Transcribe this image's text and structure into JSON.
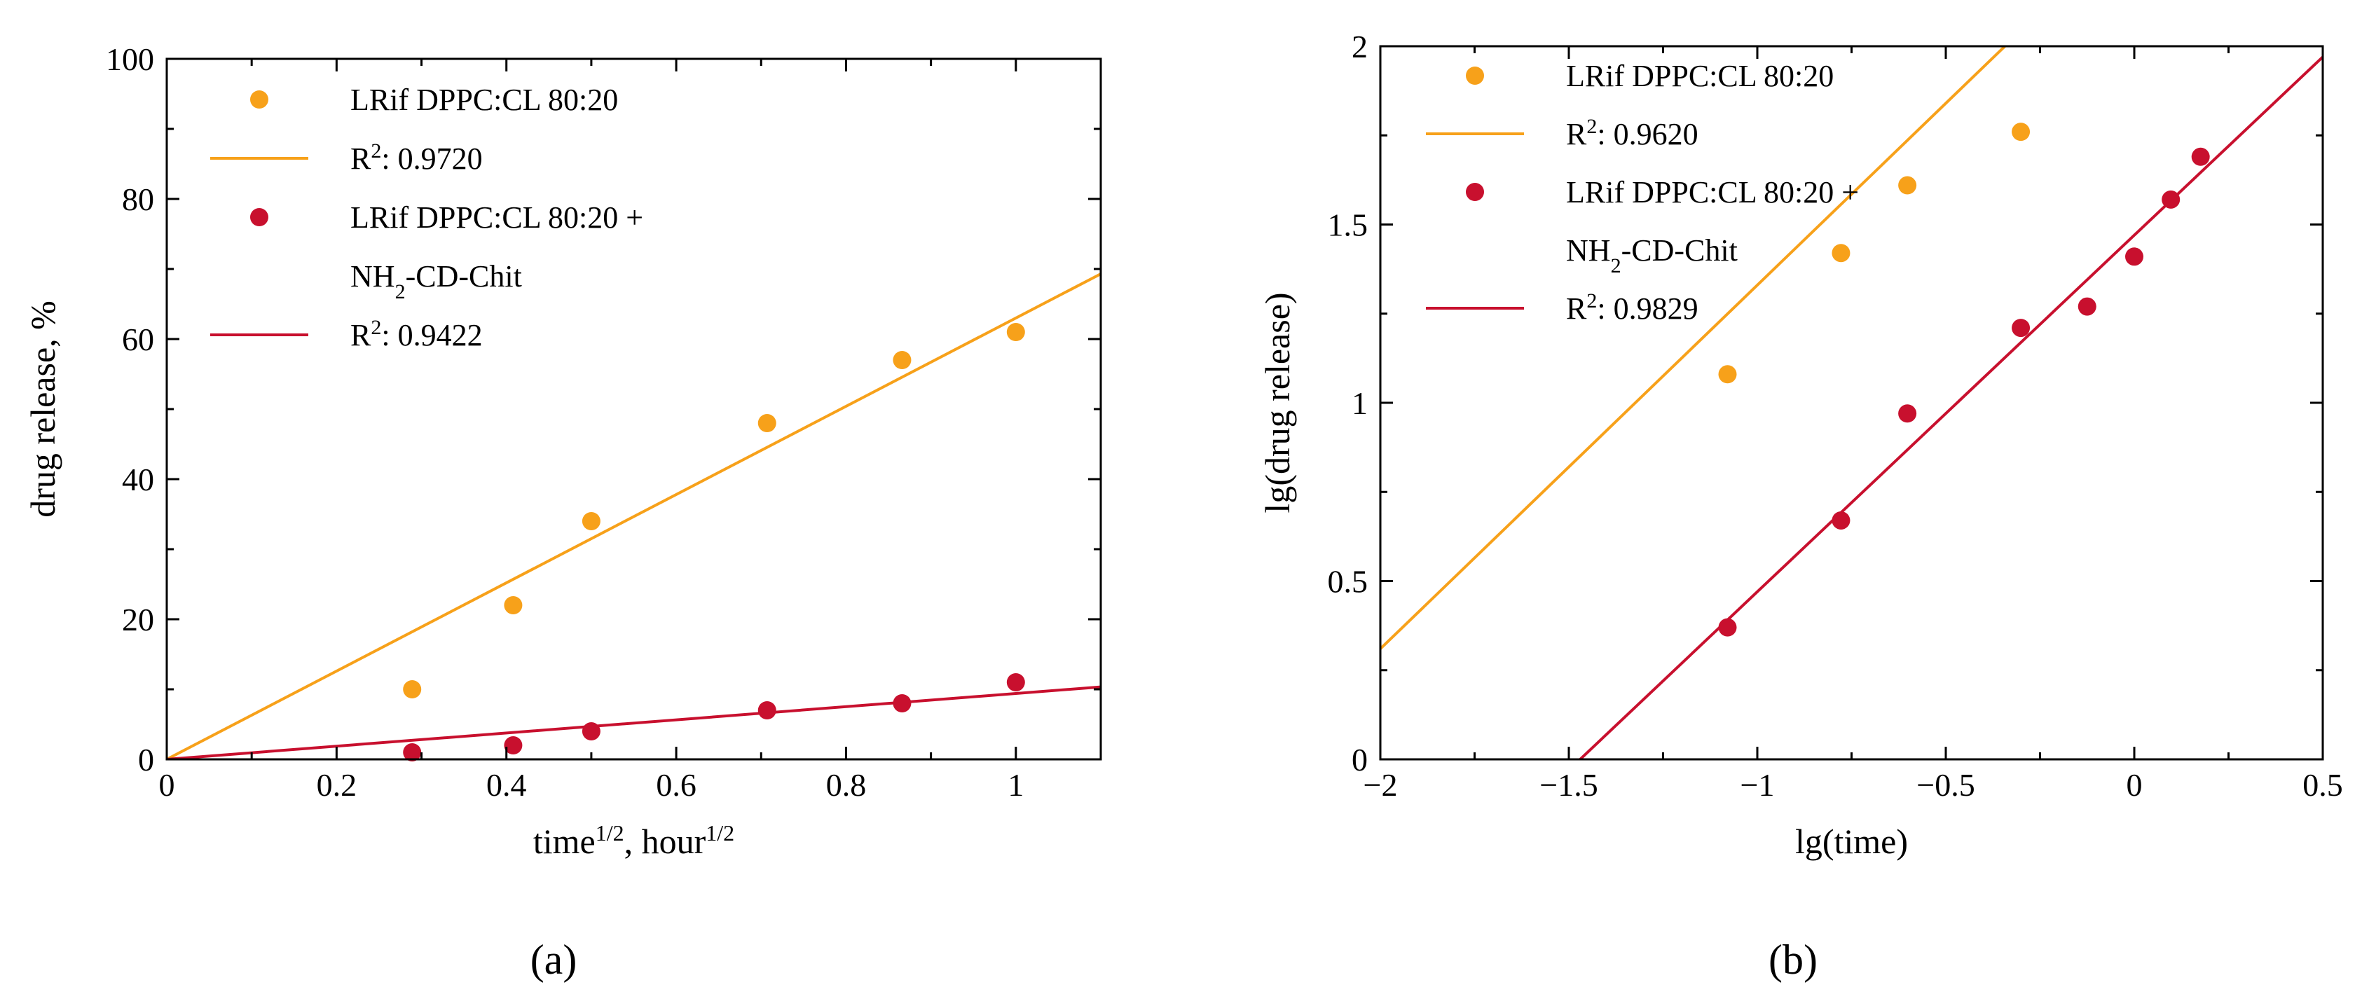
{
  "colors": {
    "series1": "#F7A11A",
    "series2": "#C8102E"
  },
  "chart_data": [
    {
      "id": "a",
      "type": "scatter",
      "panel_label": "(a)",
      "title": "",
      "xlabel": {
        "base": "time",
        "sup": "1/2",
        "mid": ", hour",
        "sup2": "1/2"
      },
      "ylabel": "drug release, %",
      "xlim": [
        0,
        1.1
      ],
      "ylim": [
        0,
        100
      ],
      "xticks": [
        0,
        0.2,
        0.4,
        0.6,
        0.8,
        1
      ],
      "xtick_labels": [
        "0",
        "0.2",
        "0.4",
        "0.6",
        "0.8",
        "1"
      ],
      "yticks": [
        0,
        20,
        40,
        60,
        80,
        100
      ],
      "ytick_labels": [
        "0",
        "20",
        "40",
        "60",
        "80",
        "100"
      ],
      "minor_xticks": [
        0.1,
        0.3,
        0.5,
        0.7,
        0.9
      ],
      "minor_yticks": [
        10,
        30,
        50,
        70,
        90
      ],
      "grid": false,
      "legend_position": "top-left",
      "series": [
        {
          "name": "LRif DPPC:CL 80:20",
          "color_key": "series1",
          "x": [
            0.289,
            0.408,
            0.5,
            0.707,
            0.866,
            1.0
          ],
          "y": [
            10,
            22,
            34,
            48,
            57,
            61
          ],
          "fit": {
            "label": {
              "pre": "R",
              "sup": "2",
              "post": ": 0.9720"
            },
            "slope": 63.0,
            "intercept": 0
          }
        },
        {
          "name": "LRif DPPC:CL 80:20 +",
          "name_line2": {
            "pre": "NH",
            "sub": "2",
            "post": "-CD-Chit"
          },
          "color_key": "series2",
          "x": [
            0.289,
            0.408,
            0.5,
            0.707,
            0.866,
            1.0
          ],
          "y": [
            1,
            2,
            4,
            7,
            8,
            11
          ],
          "fit": {
            "label": {
              "pre": "R",
              "sup": "2",
              "post": ": 0.9422"
            },
            "slope": 9.4,
            "intercept": 0
          }
        }
      ]
    },
    {
      "id": "b",
      "type": "scatter",
      "panel_label": "(b)",
      "title": "",
      "xlabel": {
        "base": "lg(time)"
      },
      "ylabel": "lg(drug release)",
      "xlim": [
        -2,
        0.5
      ],
      "ylim": [
        0,
        2
      ],
      "xticks": [
        -2,
        -1.5,
        -1,
        -0.5,
        0,
        0.5
      ],
      "xtick_labels": [
        "−2",
        "−1.5",
        "−1",
        "−0.5",
        "0",
        "0.5"
      ],
      "yticks": [
        0,
        0.5,
        1,
        1.5,
        2
      ],
      "ytick_labels": [
        "0",
        "0.5",
        "1",
        "1.5",
        "2"
      ],
      "minor_xticks": [
        -1.75,
        -1.25,
        -0.75,
        -0.25,
        0.25
      ],
      "minor_yticks": [
        0.25,
        0.75,
        1.25,
        1.75
      ],
      "grid": false,
      "legend_position": "top-left",
      "series": [
        {
          "name": "LRif DPPC:CL 80:20",
          "color_key": "series1",
          "x": [
            -1.079,
            -0.778,
            -0.602,
            -0.301
          ],
          "y": [
            1.08,
            1.42,
            1.61,
            1.76
          ],
          "fit": {
            "label": {
              "pre": "R",
              "sup": "2",
              "post": ": 0.9620"
            },
            "slope": 1.02,
            "intercept": 2.35
          }
        },
        {
          "name": "LRif DPPC:CL 80:20 +",
          "name_line2": {
            "pre": "NH",
            "sub": "2",
            "post": "-CD-Chit"
          },
          "color_key": "series2",
          "x": [
            -1.079,
            -0.778,
            -0.602,
            -0.301,
            -0.125,
            0.0,
            0.097,
            0.176
          ],
          "y": [
            0.37,
            0.67,
            0.97,
            1.21,
            1.27,
            1.41,
            1.57,
            1.69
          ],
          "fit": {
            "label": {
              "pre": "R",
              "sup": "2",
              "post": ": 0.9829"
            },
            "slope": 1.0,
            "intercept": 1.47
          }
        }
      ]
    }
  ]
}
